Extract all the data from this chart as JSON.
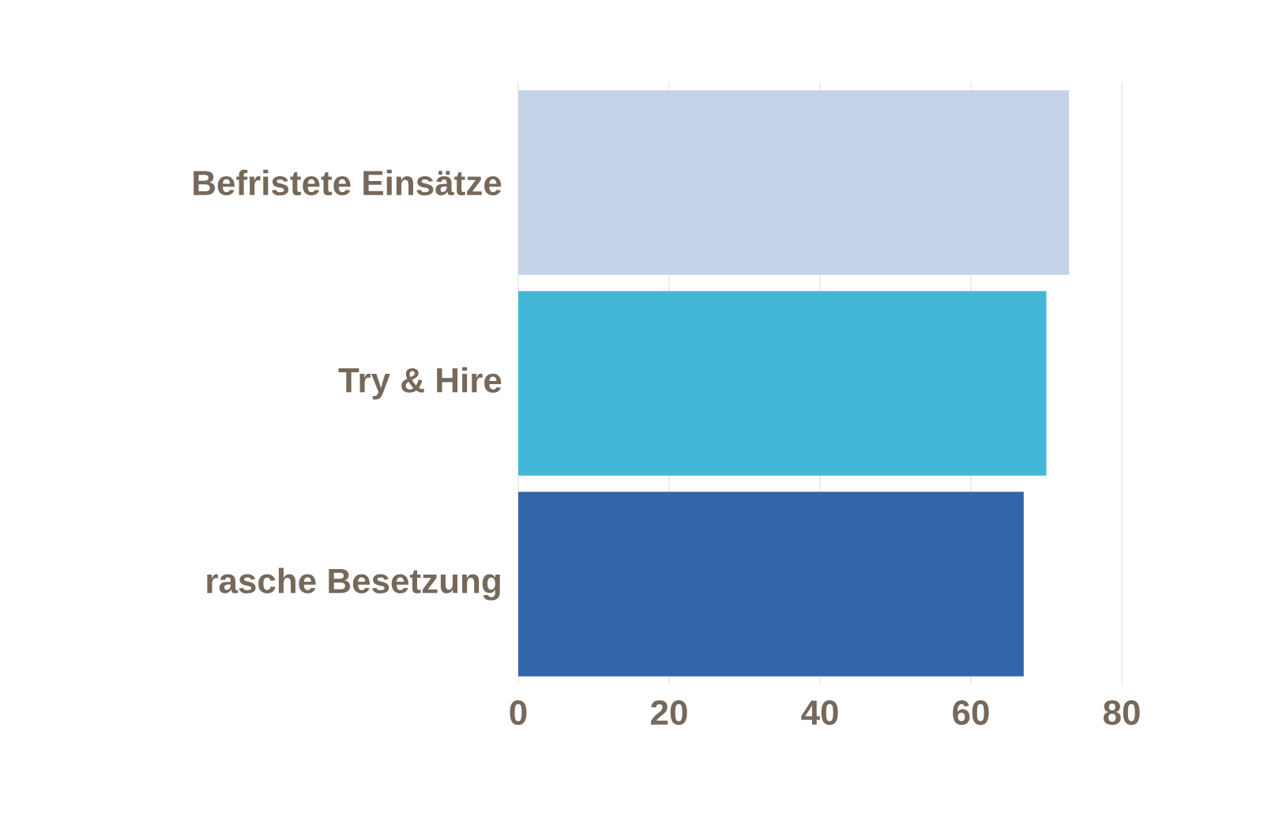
{
  "chart_data": {
    "type": "bar",
    "orientation": "horizontal",
    "categories": [
      "Befristete Einsätze",
      "Try & Hire",
      "rasche Besetzung"
    ],
    "values": [
      73,
      70,
      67
    ],
    "colors": [
      "#c5d3e8",
      "#42b8d6",
      "#3266ab"
    ],
    "xlim": [
      0,
      80
    ],
    "xticks": [
      0,
      20,
      40,
      60,
      80
    ],
    "grid": "x"
  }
}
